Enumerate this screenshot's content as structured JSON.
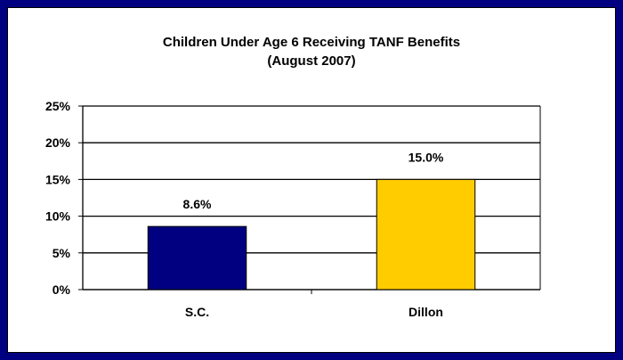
{
  "chart_data": {
    "type": "bar",
    "title": "Children Under Age 6 Receiving TANF Benefits",
    "subtitle": "(August 2007)",
    "categories": [
      "S.C.",
      "Dillon"
    ],
    "values": [
      8.6,
      15.0
    ],
    "data_labels": [
      "8.6%",
      "15.0%"
    ],
    "bar_colors": [
      "#000080",
      "#FFCC00"
    ],
    "ylim": [
      0,
      25
    ],
    "yticks": [
      0,
      5,
      10,
      15,
      20,
      25
    ],
    "ytick_labels": [
      "0%",
      "5%",
      "10%",
      "15%",
      "20%",
      "25%"
    ],
    "xlabel": "",
    "ylabel": "",
    "grid": true,
    "legend": "none"
  },
  "colors": {
    "frame": "#000080",
    "background": "#FFFFFF"
  }
}
